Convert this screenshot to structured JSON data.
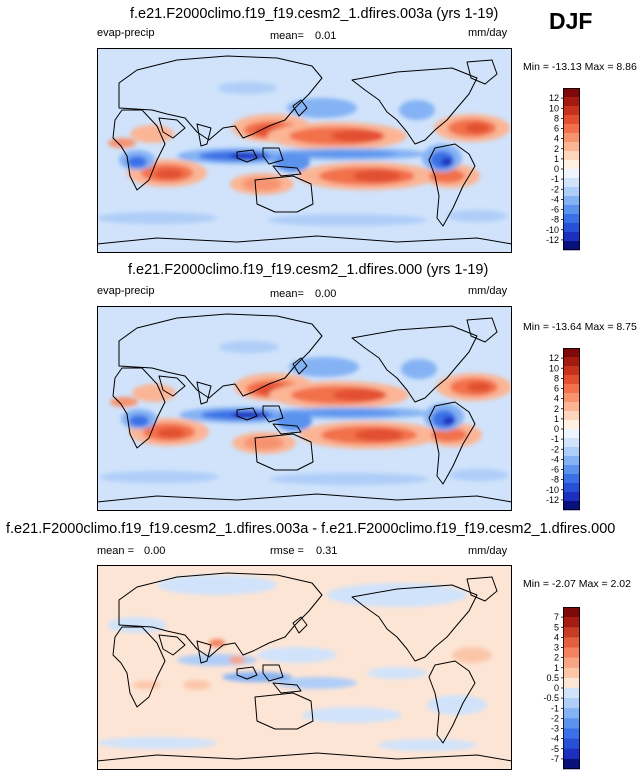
{
  "season": "DJF",
  "colors": {
    "main": [
      "#08107a",
      "#1c2fbf",
      "#2750d6",
      "#3b71e6",
      "#5a92ee",
      "#84b2f4",
      "#aecdf8",
      "#d0e3fb",
      "#eef5fe",
      "#fff0e2",
      "#fdd4bc",
      "#fbb595",
      "#f7936f",
      "#f2714c",
      "#e24f30",
      "#c7321c",
      "#a21a10",
      "#7d0a08"
    ],
    "diff": [
      "#08107a",
      "#1c2fbf",
      "#2750d6",
      "#3b71e6",
      "#5a92ee",
      "#84b2f4",
      "#aecdf8",
      "#d0e3fb",
      "#fde5d5",
      "#fbc6a8",
      "#f7a482",
      "#f28260",
      "#e45f3e",
      "#c93c24",
      "#a51d12",
      "#7d0a08"
    ],
    "land": "#000000"
  },
  "panels": [
    {
      "title": "f.e21.F2000climo.f19_f19.cesm2_1.dfires.003a (yrs 1-19)",
      "variable": "evap-precip",
      "mean_label": "mean=",
      "mean": "0.01",
      "units": "mm/day",
      "minmax": "Min = -13.13 Max =   8.86"
    },
    {
      "title": "f.e21.F2000climo.f19_f19.cesm2_1.dfires.000 (yrs 1-19)",
      "variable": "evap-precip",
      "mean_label": "mean=",
      "mean": "0.00",
      "units": "mm/day",
      "minmax": "Min = -13.64 Max =   8.75"
    },
    {
      "title": "f.e21.F2000climo.f19_f19.cesm2_1.dfires.003a - f.e21.F2000climo.f19_f19.cesm2_1.dfires.000",
      "mean_label": "mean =",
      "mean": "0.00",
      "rmse_label": "rmse =",
      "rmse": "0.31",
      "units": "mm/day",
      "minmax": "Min = -2.07 Max =   2.02"
    }
  ],
  "chart_data": [
    {
      "type": "heatmap",
      "title": "f.e21.F2000climo.f19_f19.cesm2_1.dfires.003a (yrs 1-19)",
      "variable": "evap-precip",
      "units": "mm/day",
      "mean": 0.01,
      "min": -13.13,
      "max": 8.86,
      "colorbar_levels": [
        -12,
        -10,
        -8,
        -6,
        -4,
        -2,
        -1,
        0,
        1,
        2,
        4,
        6,
        8,
        10,
        12
      ],
      "colorbar_labels": [
        "12",
        "10",
        "8",
        "6",
        "4",
        "2",
        "1",
        "0",
        "-1",
        "-2",
        "-4",
        "-6",
        "-8",
        "-10",
        "-12"
      ]
    },
    {
      "type": "heatmap",
      "title": "f.e21.F2000climo.f19_f19.cesm2_1.dfires.000 (yrs 1-19)",
      "variable": "evap-precip",
      "units": "mm/day",
      "mean": 0.0,
      "min": -13.64,
      "max": 8.75,
      "colorbar_levels": [
        -12,
        -10,
        -8,
        -6,
        -4,
        -2,
        -1,
        0,
        1,
        2,
        4,
        6,
        8,
        10,
        12
      ],
      "colorbar_labels": [
        "12",
        "10",
        "8",
        "6",
        "4",
        "2",
        "1",
        "0",
        "-1",
        "-2",
        "-4",
        "-6",
        "-8",
        "-10",
        "-12"
      ]
    },
    {
      "type": "heatmap",
      "title": "f.e21.F2000climo.f19_f19.cesm2_1.dfires.003a - f.e21.F2000climo.f19_f19.cesm2_1.dfires.000",
      "units": "mm/day",
      "mean": 0.0,
      "rmse": 0.31,
      "min": -2.07,
      "max": 2.02,
      "colorbar_levels": [
        -7,
        -5,
        -4,
        -3,
        -2,
        -1,
        -0.5,
        0,
        0.5,
        1,
        2,
        3,
        4,
        5,
        7
      ],
      "colorbar_labels": [
        "7",
        "5",
        "4",
        "3",
        "2",
        "1",
        "0.5",
        "0",
        "-0.5",
        "-1",
        "-2",
        "-3",
        "-4",
        "-5",
        "-7"
      ]
    }
  ]
}
